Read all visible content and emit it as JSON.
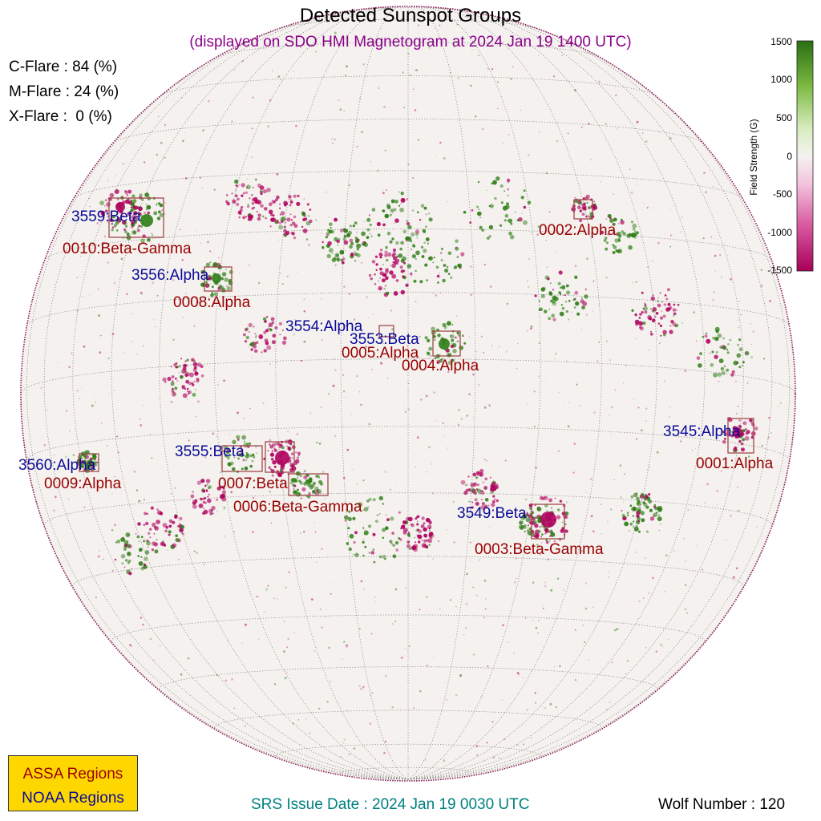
{
  "title": "Detected Sunspot Groups",
  "subtitle": "(displayed on SDO HMI Magnetogram at 2024 Jan 19 1400 UTC)",
  "flares": [
    {
      "label": "C-Flare : 84 (%)"
    },
    {
      "label": "M-Flare : 24 (%)"
    },
    {
      "label": "X-Flare :  0 (%)"
    }
  ],
  "colorbar": {
    "label": "Field Strength (G)",
    "ticks": [
      "1500",
      "1000",
      "500",
      "0",
      "-500",
      "-1000",
      "-1500"
    ],
    "colors": {
      "positive": "#2e7d15",
      "negative": "#b0005e"
    }
  },
  "legend": {
    "assa": "ASSA Regions",
    "noaa": "NOAA Regions",
    "background": "#ffd700"
  },
  "srs_issue": "SRS Issue Date : 2024 Jan 19 0030 UTC",
  "wolf_number": "Wolf Number : 120",
  "colors": {
    "assa": "#990000",
    "noaa": "#0a0a99",
    "subtitle": "#8b008b",
    "srs": "#008080",
    "box": "#a24a4a"
  },
  "noaa_regions": [
    {
      "label": "3559:Beta"
    },
    {
      "label": "3556:Alpha"
    },
    {
      "label": "3554:Alpha"
    },
    {
      "label": "3553:Beta"
    },
    {
      "label": "3545:Alpha"
    },
    {
      "label": "3560:Alpha"
    },
    {
      "label": "3555:Beta"
    },
    {
      "label": "3549:Beta"
    }
  ],
  "assa_regions": [
    {
      "label": "0010:Beta-Gamma"
    },
    {
      "label": "0002:Alpha"
    },
    {
      "label": "0008:Alpha"
    },
    {
      "label": "0005:Alpha"
    },
    {
      "label": "0004:Alpha"
    },
    {
      "label": "0001:Alpha"
    },
    {
      "label": "0009:Alpha"
    },
    {
      "label": "0007:Beta"
    },
    {
      "label": "0006:Beta-Gamma"
    },
    {
      "label": "0003:Beta-Gamma"
    }
  ]
}
